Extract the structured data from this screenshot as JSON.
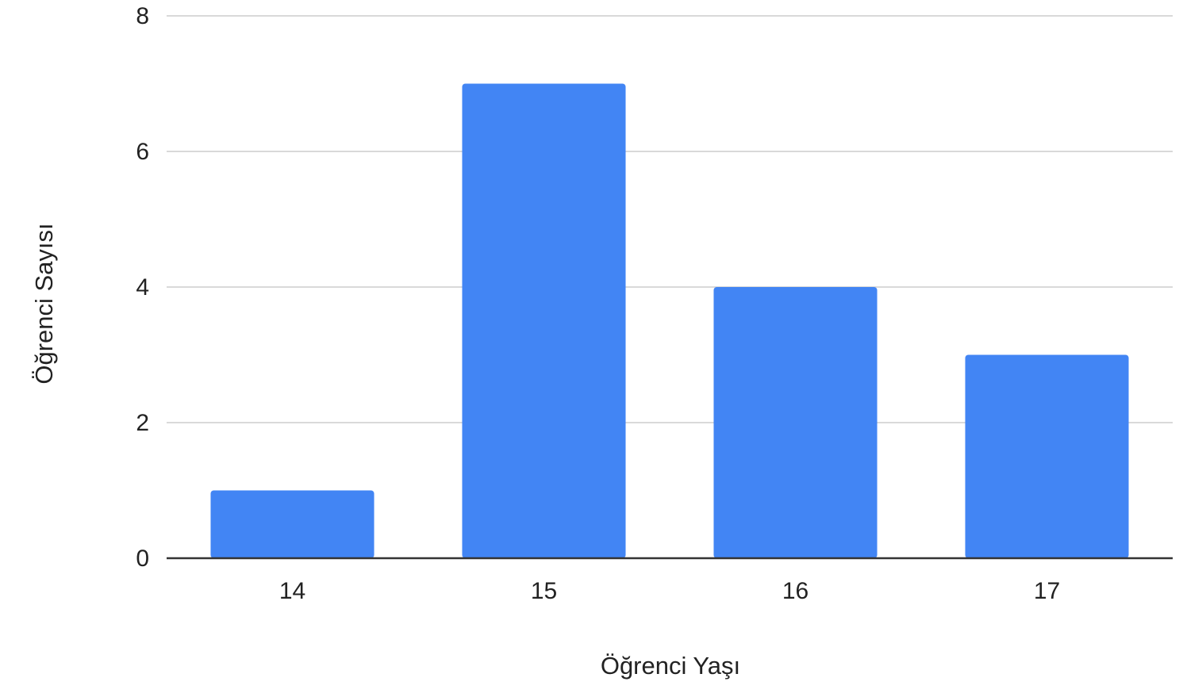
{
  "chart_data": {
    "type": "bar",
    "categories": [
      "14",
      "15",
      "16",
      "17"
    ],
    "values": [
      1,
      7,
      4,
      3
    ],
    "xlabel": "Öğrenci Yaşı",
    "ylabel": "Öğrenci Sayısı",
    "ylim": [
      0,
      8
    ],
    "yticks": [
      0,
      2,
      4,
      6,
      8
    ],
    "grid": true,
    "legend": "none",
    "colors": {
      "bar": "#4285F4",
      "grid": "#D9D9D9",
      "baseline": "#333333",
      "text": "#222222"
    }
  }
}
